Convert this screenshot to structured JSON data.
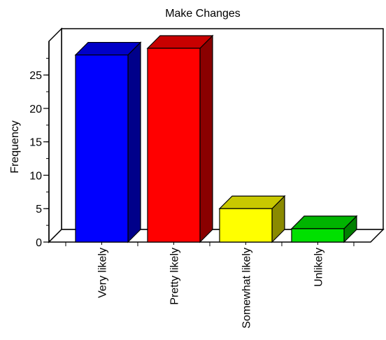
{
  "chart_data": {
    "type": "bar",
    "title": "Make Changes",
    "xlabel": "",
    "ylabel": "Frequency",
    "categories": [
      "Very likely",
      "Pretty likely",
      "Somewhat likely",
      "Unlikely"
    ],
    "values": [
      28,
      29,
      5,
      2
    ],
    "ylim": [
      0,
      29
    ],
    "yticks": [
      0,
      5,
      10,
      15,
      20,
      25
    ],
    "bar_colors": [
      "#0000ff",
      "#ff0000",
      "#ffff00",
      "#00e000"
    ],
    "bar_side_colors": [
      "#00008a",
      "#8a0000",
      "#8a8a00",
      "#008000"
    ],
    "bar_top_colors": [
      "#0000c8",
      "#c80000",
      "#c8c800",
      "#00b400"
    ],
    "grid": false,
    "legend": "none",
    "style": "3d"
  }
}
